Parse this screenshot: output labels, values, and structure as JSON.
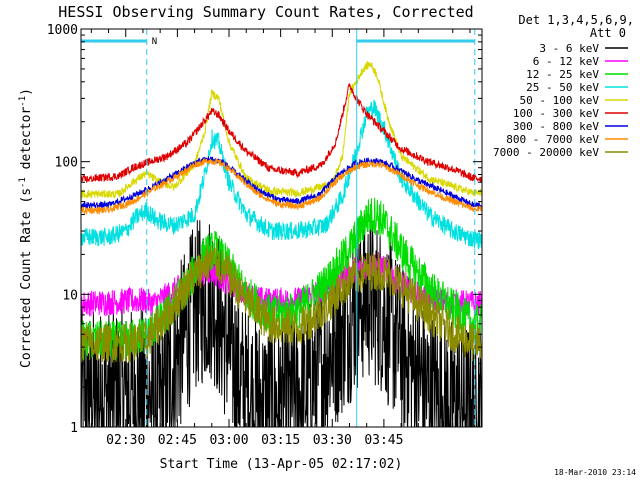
{
  "chart_data": {
    "type": "line",
    "title": "HESSI Observing Summary Count Rates, Corrected",
    "xlabel": "Start Time (13-Apr-05 02:17:02)",
    "ylabel": "Corrected Count Rate (s^-1 detector^-1)",
    "ylabel_parts": {
      "main": "Corrected Count Rate (s",
      "sup1": "-1",
      "mid": " detector",
      "sup2": "-1",
      "end": ")"
    },
    "y_scale": "log",
    "ylim": [
      1,
      1000
    ],
    "y_ticks": [
      {
        "value": 1,
        "label": "1"
      },
      {
        "value": 10,
        "label": "10"
      },
      {
        "value": 100,
        "label": "100"
      },
      {
        "value": 1000,
        "label": "1000"
      }
    ],
    "x_range_min": [
      17.0,
      133.5
    ],
    "x_ticks": [
      {
        "value": 30,
        "label": "02:30"
      },
      {
        "value": 45,
        "label": "02:45"
      },
      {
        "value": 60,
        "label": "03:00"
      },
      {
        "value": 75,
        "label": "03:15"
      },
      {
        "value": 90,
        "label": "03:30"
      },
      {
        "value": 105,
        "label": "03:45"
      }
    ],
    "legend_position": "right",
    "legend_header": [
      "Det 1,3,4,5,6,9,",
      "Att 0"
    ],
    "flag_label": "N",
    "night_intervals_min": [
      [
        17.0,
        36.1
      ],
      [
        97.1,
        131.4
      ]
    ],
    "saa_markers_min": [
      17.0,
      36.1,
      97.1,
      131.4
    ],
    "footer": "18-Mar-2010 23:14",
    "series": [
      {
        "name": "3 - 6 keV",
        "color": "#000000",
        "noise": 0.65,
        "points": [
          [
            17,
            1.8
          ],
          [
            30,
            1.8
          ],
          [
            36,
            1.8
          ],
          [
            40,
            1.5
          ],
          [
            45,
            3.5
          ],
          [
            50,
            8
          ],
          [
            55,
            10
          ],
          [
            60,
            4
          ],
          [
            64,
            2
          ],
          [
            70,
            1.5
          ],
          [
            75,
            1.5
          ],
          [
            82,
            1.8
          ],
          [
            90,
            4
          ],
          [
            97,
            8
          ],
          [
            100,
            10
          ],
          [
            104,
            8
          ],
          [
            110,
            4
          ],
          [
            118,
            1.8
          ],
          [
            125,
            1.5
          ],
          [
            131,
            1.5
          ]
        ]
      },
      {
        "name": "6 - 12 keV",
        "color": "#ff00ff",
        "noise": 0.1,
        "points": [
          [
            17,
            8.5
          ],
          [
            35,
            9
          ],
          [
            38,
            8.5
          ],
          [
            45,
            11
          ],
          [
            50,
            14
          ],
          [
            55,
            15
          ],
          [
            60,
            12
          ],
          [
            65,
            10
          ],
          [
            70,
            9
          ],
          [
            80,
            9
          ],
          [
            88,
            11
          ],
          [
            93,
            14
          ],
          [
            98,
            16
          ],
          [
            103,
            17
          ],
          [
            106,
            15
          ],
          [
            110,
            12
          ],
          [
            115,
            10
          ],
          [
            122,
            8.8
          ],
          [
            131,
            8.5
          ]
        ]
      },
      {
        "name": "12 - 25 keV",
        "color": "#00dd00",
        "noise": 0.15,
        "points": [
          [
            17,
            4.5
          ],
          [
            30,
            4.5
          ],
          [
            36,
            5
          ],
          [
            42,
            7
          ],
          [
            48,
            12
          ],
          [
            53,
            20
          ],
          [
            56,
            22
          ],
          [
            60,
            16
          ],
          [
            65,
            10
          ],
          [
            72,
            7
          ],
          [
            80,
            7.5
          ],
          [
            88,
            12
          ],
          [
            95,
            22
          ],
          [
            100,
            38
          ],
          [
            103,
            40
          ],
          [
            106,
            32
          ],
          [
            112,
            18
          ],
          [
            120,
            10
          ],
          [
            126,
            7.5
          ],
          [
            131,
            6
          ]
        ]
      },
      {
        "name": "25 - 50 keV",
        "color": "#00e0e0",
        "noise": 0.07,
        "points": [
          [
            17,
            27
          ],
          [
            25,
            27
          ],
          [
            30,
            30
          ],
          [
            33,
            38
          ],
          [
            36,
            43
          ],
          [
            39,
            36
          ],
          [
            44,
            33
          ],
          [
            50,
            40
          ],
          [
            53,
            80
          ],
          [
            55,
            150
          ],
          [
            57,
            140
          ],
          [
            60,
            70
          ],
          [
            65,
            40
          ],
          [
            72,
            30
          ],
          [
            80,
            30
          ],
          [
            88,
            33
          ],
          [
            93,
            55
          ],
          [
            97,
            120
          ],
          [
            100,
            230
          ],
          [
            102,
            260
          ],
          [
            105,
            180
          ],
          [
            110,
            75
          ],
          [
            118,
            40
          ],
          [
            125,
            30
          ],
          [
            131,
            26
          ]
        ]
      },
      {
        "name": "50 - 100 keV",
        "color": "#d8d800",
        "noise": 0.03,
        "points": [
          [
            17,
            57
          ],
          [
            28,
            57
          ],
          [
            32,
            70
          ],
          [
            36,
            82
          ],
          [
            39,
            72
          ],
          [
            44,
            64
          ],
          [
            50,
            95
          ],
          [
            53,
            170
          ],
          [
            55,
            330
          ],
          [
            57,
            300
          ],
          [
            60,
            140
          ],
          [
            65,
            75
          ],
          [
            72,
            60
          ],
          [
            80,
            58
          ],
          [
            90,
            68
          ],
          [
            93,
            110
          ],
          [
            95,
            330
          ],
          [
            97,
            400
          ],
          [
            99,
            500
          ],
          [
            101,
            550
          ],
          [
            103,
            450
          ],
          [
            106,
            220
          ],
          [
            110,
            110
          ],
          [
            118,
            75
          ],
          [
            125,
            65
          ],
          [
            131,
            58
          ]
        ]
      },
      {
        "name": "100 - 300 keV",
        "color": "#dd0000",
        "noise": 0.03,
        "points": [
          [
            17,
            73
          ],
          [
            28,
            78
          ],
          [
            32,
            90
          ],
          [
            36,
            98
          ],
          [
            42,
            110
          ],
          [
            48,
            140
          ],
          [
            52,
            190
          ],
          [
            55,
            240
          ],
          [
            57,
            225
          ],
          [
            60,
            170
          ],
          [
            65,
            120
          ],
          [
            72,
            88
          ],
          [
            80,
            82
          ],
          [
            87,
            95
          ],
          [
            91,
            140
          ],
          [
            93,
            230
          ],
          [
            95,
            380
          ],
          [
            97,
            300
          ],
          [
            100,
            230
          ],
          [
            104,
            180
          ],
          [
            110,
            125
          ],
          [
            118,
            100
          ],
          [
            125,
            88
          ],
          [
            131,
            75
          ]
        ]
      },
      {
        "name": "300 - 800 keV",
        "color": "#0000dd",
        "noise": 0.025,
        "points": [
          [
            17,
            47
          ],
          [
            25,
            47
          ],
          [
            32,
            55
          ],
          [
            38,
            65
          ],
          [
            45,
            82
          ],
          [
            50,
            98
          ],
          [
            54,
            105
          ],
          [
            58,
            100
          ],
          [
            62,
            82
          ],
          [
            68,
            62
          ],
          [
            74,
            52
          ],
          [
            80,
            50
          ],
          [
            86,
            56
          ],
          [
            92,
            80
          ],
          [
            97,
            98
          ],
          [
            101,
            102
          ],
          [
            104,
            100
          ],
          [
            109,
            88
          ],
          [
            115,
            72
          ],
          [
            122,
            60
          ],
          [
            131,
            47
          ]
        ]
      },
      {
        "name": "800 - 7000 keV",
        "color": "#ff8c00",
        "noise": 0.025,
        "points": [
          [
            17,
            43
          ],
          [
            25,
            43
          ],
          [
            32,
            50
          ],
          [
            38,
            62
          ],
          [
            45,
            78
          ],
          [
            50,
            95
          ],
          [
            54,
            102
          ],
          [
            58,
            97
          ],
          [
            62,
            80
          ],
          [
            68,
            58
          ],
          [
            74,
            48
          ],
          [
            80,
            46
          ],
          [
            86,
            52
          ],
          [
            92,
            75
          ],
          [
            97,
            92
          ],
          [
            101,
            96
          ],
          [
            104,
            95
          ],
          [
            109,
            82
          ],
          [
            115,
            66
          ],
          [
            122,
            54
          ],
          [
            131,
            44
          ]
        ]
      },
      {
        "name": "7000 - 20000 keV",
        "color": "#8b8b00",
        "noise": 0.15,
        "points": [
          [
            17,
            4.3
          ],
          [
            30,
            4.3
          ],
          [
            36,
            4.5
          ],
          [
            42,
            7
          ],
          [
            48,
            12
          ],
          [
            53,
            17
          ],
          [
            56,
            18
          ],
          [
            60,
            14
          ],
          [
            65,
            9
          ],
          [
            72,
            6
          ],
          [
            80,
            5.5
          ],
          [
            88,
            8
          ],
          [
            95,
            13
          ],
          [
            100,
            15
          ],
          [
            104,
            15
          ],
          [
            108,
            13
          ],
          [
            114,
            9
          ],
          [
            120,
            6.5
          ],
          [
            126,
            5
          ],
          [
            131,
            4.3
          ]
        ]
      }
    ]
  }
}
